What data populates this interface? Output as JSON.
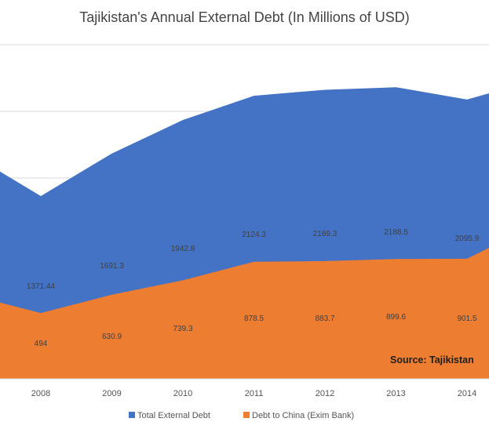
{
  "chart_data": {
    "type": "area",
    "title": "Tajikistan's Annual External Debt (In Millions of USD)",
    "categories": [
      "2008",
      "2009",
      "2010",
      "2011",
      "2012",
      "2013",
      "2014"
    ],
    "series": [
      {
        "name": "Total External Debt",
        "color": "#4472C4",
        "values": [
          1371.44,
          1691.3,
          1942.8,
          2124.3,
          2169.3,
          2188.5,
          2095.9
        ]
      },
      {
        "name": "Debt to China (Exim Bank)",
        "color": "#ED7D31",
        "values": [
          494,
          630.9,
          739.3,
          878.5,
          883.7,
          899.6,
          901.5
        ]
      }
    ],
    "value_labels": {
      "total": [
        "1371.44",
        "1691.3",
        "1942.8",
        "2124.3",
        "2169.3",
        "2188.5",
        "2095.9"
      ],
      "china": [
        "494",
        "630.9",
        "739.3",
        "878.5",
        "883.7",
        "899.6",
        "901.5"
      ]
    },
    "source": "Source: Tajikistan",
    "grid": true,
    "legend_position": "bottom"
  }
}
